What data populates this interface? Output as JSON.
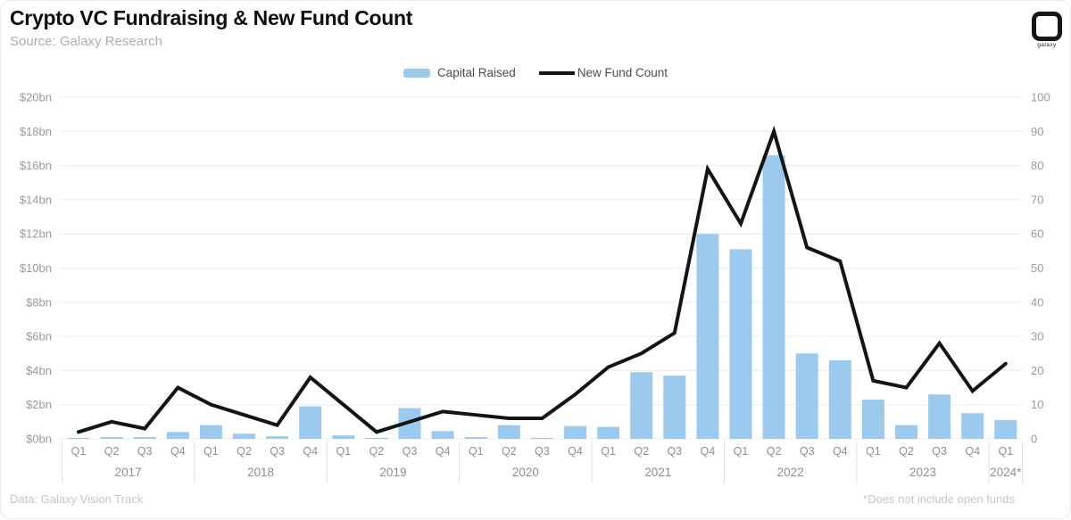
{
  "header": {
    "title": "Crypto VC Fundraising & New Fund Count",
    "source": "Source: Galaxy Research"
  },
  "logo": {
    "brand": "galaxy"
  },
  "legend": [
    {
      "label": "Capital Raised",
      "type": "bar",
      "color": "#9ccaee"
    },
    {
      "label": "New Fund Count",
      "type": "line",
      "color": "#141414"
    }
  ],
  "footer": {
    "left": "Data: Galaxy Vision Track",
    "right": "*Does not include open funds"
  },
  "chart_data": {
    "type": "bar+line",
    "title": "Crypto VC Fundraising & New Fund Count",
    "grid": true,
    "legend_position": "top",
    "x_groups": [
      {
        "label": "2017",
        "quarters": [
          "Q1",
          "Q2",
          "Q3",
          "Q4"
        ]
      },
      {
        "label": "2018",
        "quarters": [
          "Q1",
          "Q2",
          "Q3",
          "Q4"
        ]
      },
      {
        "label": "2019",
        "quarters": [
          "Q1",
          "Q2",
          "Q3",
          "Q4"
        ]
      },
      {
        "label": "2020",
        "quarters": [
          "Q1",
          "Q2",
          "Q3",
          "Q4"
        ]
      },
      {
        "label": "2021",
        "quarters": [
          "Q1",
          "Q2",
          "Q3",
          "Q4"
        ]
      },
      {
        "label": "2022",
        "quarters": [
          "Q1",
          "Q2",
          "Q3",
          "Q4"
        ]
      },
      {
        "label": "2023",
        "quarters": [
          "Q1",
          "Q2",
          "Q3",
          "Q4"
        ]
      },
      {
        "label": "2024*",
        "quarters": [
          "Q1"
        ]
      }
    ],
    "series": [
      {
        "name": "Capital Raised",
        "type": "bar",
        "axis": "left",
        "unit": "$bn",
        "color": "#9ccaee",
        "values": [
          0.05,
          0.1,
          0.1,
          0.4,
          0.8,
          0.3,
          0.15,
          1.9,
          0.2,
          0.05,
          1.8,
          0.45,
          0.1,
          0.8,
          0.05,
          0.75,
          0.7,
          3.9,
          3.7,
          12.0,
          11.1,
          16.6,
          5.0,
          4.6,
          2.3,
          0.8,
          2.6,
          1.5,
          1.1
        ]
      },
      {
        "name": "New Fund Count",
        "type": "line",
        "axis": "right",
        "unit": "funds",
        "color": "#141414",
        "values": [
          2,
          5,
          3,
          15,
          10,
          7,
          4,
          18,
          10,
          2,
          5,
          8,
          7,
          6,
          6,
          13,
          21,
          25,
          31,
          79,
          63,
          90,
          56,
          52,
          17,
          15,
          28,
          14,
          22
        ]
      }
    ],
    "left_axis": {
      "min": 0,
      "max": 20,
      "ticks": [
        {
          "v": 0,
          "label": "$0bn"
        },
        {
          "v": 2,
          "label": "$2bn"
        },
        {
          "v": 4,
          "label": "$4bn"
        },
        {
          "v": 6,
          "label": "$6bn"
        },
        {
          "v": 8,
          "label": "$8bn"
        },
        {
          "v": 10,
          "label": "$10bn"
        },
        {
          "v": 12,
          "label": "$12bn"
        },
        {
          "v": 14,
          "label": "$14bn"
        },
        {
          "v": 16,
          "label": "$16bn"
        },
        {
          "v": 18,
          "label": "$18bn"
        },
        {
          "v": 20,
          "label": "$20bn"
        }
      ]
    },
    "right_axis": {
      "min": 0,
      "max": 100,
      "ticks": [
        {
          "v": 0,
          "label": "0"
        },
        {
          "v": 10,
          "label": "10"
        },
        {
          "v": 20,
          "label": "20"
        },
        {
          "v": 30,
          "label": "30"
        },
        {
          "v": 40,
          "label": "40"
        },
        {
          "v": 50,
          "label": "50"
        },
        {
          "v": 60,
          "label": "60"
        },
        {
          "v": 70,
          "label": "70"
        },
        {
          "v": 80,
          "label": "80"
        },
        {
          "v": 90,
          "label": "90"
        },
        {
          "v": 100,
          "label": "100"
        }
      ]
    }
  }
}
